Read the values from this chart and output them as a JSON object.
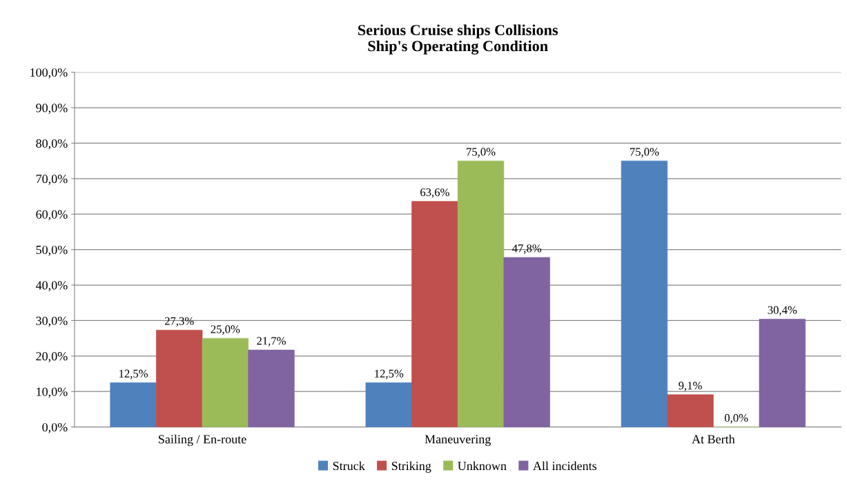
{
  "chart_data": {
    "type": "bar",
    "title": "Serious Cruise ships Collisions\nShip's Operating Condition",
    "categories": [
      "Sailing / En-route",
      "Maneuvering",
      "At Berth"
    ],
    "series": [
      {
        "name": "Struck",
        "color": "#4f81bd",
        "values": [
          12.5,
          12.5,
          75.0
        ],
        "value_labels": [
          "12,5%",
          "12,5%",
          "75,0%"
        ]
      },
      {
        "name": "Striking",
        "color": "#c0504d",
        "values": [
          27.3,
          63.6,
          9.1
        ],
        "value_labels": [
          "27,3%",
          "63,6%",
          "9,1%"
        ]
      },
      {
        "name": "Unknown",
        "color": "#9bbb59",
        "values": [
          25.0,
          75.0,
          0.0
        ],
        "value_labels": [
          "25,0%",
          "75,0%",
          "0,0%"
        ]
      },
      {
        "name": "All incidents",
        "color": "#8064a2",
        "values": [
          21.7,
          47.8,
          30.4
        ],
        "value_labels": [
          "21,7%",
          "47,8%",
          "30,4%"
        ]
      }
    ],
    "ylim": [
      0,
      100
    ],
    "yticks": [
      {
        "value": 0,
        "label": "0,0%"
      },
      {
        "value": 10,
        "label": "10,0%"
      },
      {
        "value": 20,
        "label": "20,0%"
      },
      {
        "value": 30,
        "label": "30,0%"
      },
      {
        "value": 40,
        "label": "40,0%"
      },
      {
        "value": 50,
        "label": "50,0%"
      },
      {
        "value": 60,
        "label": "60,0%"
      },
      {
        "value": 70,
        "label": "70,0%"
      },
      {
        "value": 80,
        "label": "80,0%"
      },
      {
        "value": 90,
        "label": "90,0%"
      },
      {
        "value": 100,
        "label": "100,0%"
      }
    ],
    "grid": "y",
    "legend": "bottom"
  }
}
